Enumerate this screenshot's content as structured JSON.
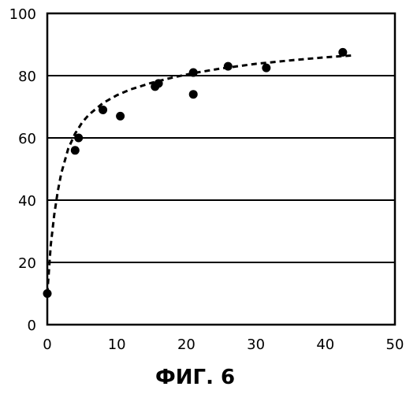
{
  "chart_data": {
    "type": "scatter",
    "caption": "ФИГ. 6",
    "xlim": [
      0,
      50
    ],
    "ylim": [
      0,
      100
    ],
    "x_ticks": [
      0,
      10,
      20,
      30,
      40,
      50
    ],
    "y_ticks": [
      0,
      20,
      40,
      60,
      80,
      100
    ],
    "grid": "horizontal",
    "points": [
      {
        "x": 0,
        "y": 10
      },
      {
        "x": 4,
        "y": 56
      },
      {
        "x": 4.5,
        "y": 60
      },
      {
        "x": 8,
        "y": 69
      },
      {
        "x": 10.5,
        "y": 67
      },
      {
        "x": 15.5,
        "y": 76.5
      },
      {
        "x": 16,
        "y": 77.5
      },
      {
        "x": 21,
        "y": 81
      },
      {
        "x": 21,
        "y": 74
      },
      {
        "x": 26,
        "y": 83
      },
      {
        "x": 31.5,
        "y": 82.5
      },
      {
        "x": 42.5,
        "y": 87.5
      }
    ],
    "fit_curve": {
      "style": "dashed",
      "x": [
        0,
        0.5,
        1,
        1.5,
        2,
        3,
        4,
        5,
        6,
        8,
        10,
        12,
        15,
        18,
        21,
        25,
        30,
        35,
        40,
        44
      ],
      "y": [
        10,
        25.6,
        35.3,
        42.7,
        48.5,
        56.5,
        61.4,
        64.9,
        67.5,
        71.2,
        73.7,
        75.6,
        77.7,
        79.4,
        80.8,
        82.3,
        83.8,
        84.9,
        85.9,
        86.5
      ]
    },
    "colors": {
      "ink": "#000000",
      "background": "#ffffff"
    }
  }
}
